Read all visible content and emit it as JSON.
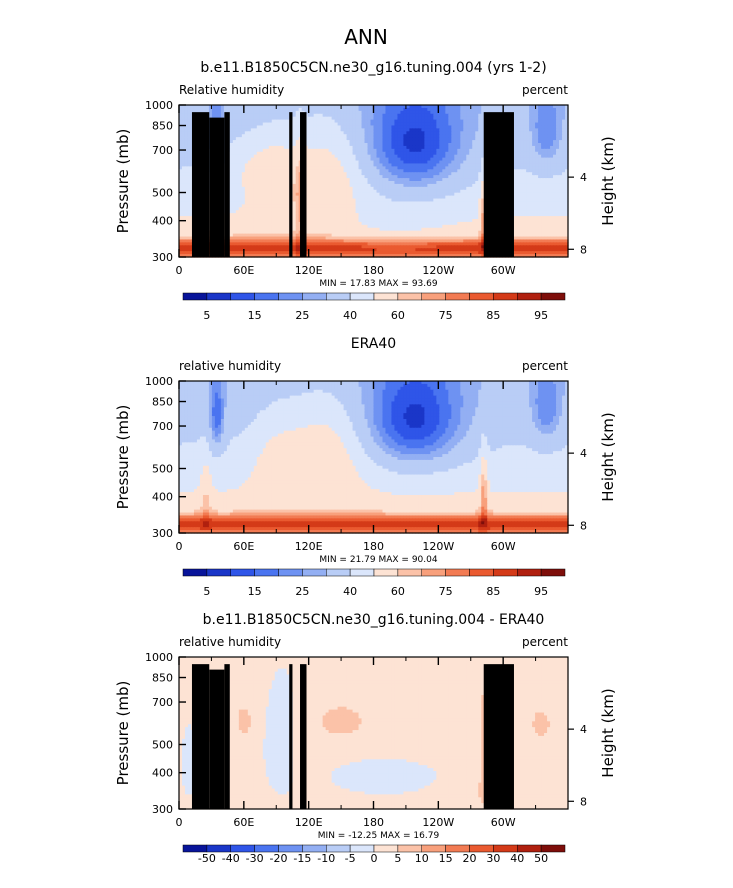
{
  "figure": {
    "title": "ANN"
  },
  "chart_data": [
    {
      "type": "heatmap",
      "title": "b.e11.B1850C5CN.ne30_g16.tuning.004 (yrs 1-2)",
      "left_label": "Relative humidity",
      "right_label": "percent",
      "ylabel": "Pressure (mb)",
      "ylabel_right": "Height (km)",
      "x_ticks": [
        "0",
        "60E",
        "120E",
        "180",
        "120W",
        "60W"
      ],
      "x_tick_lon": [
        0,
        60,
        120,
        180,
        240,
        300
      ],
      "xlim": [
        0,
        360
      ],
      "y_ticks": [
        "300",
        "400",
        "500",
        "700",
        "850",
        "1000"
      ],
      "y_tick_p": [
        300,
        400,
        500,
        700,
        850,
        1000
      ],
      "ylim": [
        1000,
        300
      ],
      "y_scale": "log",
      "height_ticks": [
        "8",
        "4"
      ],
      "height_km": [
        8,
        4
      ],
      "stats": "MIN =   17.83   MAX =   93.69",
      "min": 17.83,
      "max": 93.69,
      "colorbar_labels": [
        "5",
        "15",
        "25",
        "40",
        "60",
        "75",
        "85",
        "95"
      ],
      "colorbar_levels": [
        5,
        10,
        15,
        20,
        25,
        30,
        40,
        50,
        60,
        65,
        70,
        75,
        80,
        85,
        90,
        95
      ]
    },
    {
      "type": "heatmap",
      "title": "ERA40",
      "left_label": "relative humidity",
      "right_label": "percent",
      "ylabel": "Pressure (mb)",
      "ylabel_right": "Height (km)",
      "x_ticks": [
        "0",
        "60E",
        "120E",
        "180",
        "120W",
        "60W"
      ],
      "x_tick_lon": [
        0,
        60,
        120,
        180,
        240,
        300
      ],
      "xlim": [
        0,
        360
      ],
      "y_ticks": [
        "300",
        "400",
        "500",
        "700",
        "850",
        "1000"
      ],
      "y_tick_p": [
        300,
        400,
        500,
        700,
        850,
        1000
      ],
      "ylim": [
        1000,
        300
      ],
      "y_scale": "log",
      "height_ticks": [
        "8",
        "4"
      ],
      "height_km": [
        8,
        4
      ],
      "stats": "MIN =   21.79   MAX =   90.04",
      "min": 21.79,
      "max": 90.04,
      "colorbar_labels": [
        "5",
        "15",
        "25",
        "40",
        "60",
        "75",
        "85",
        "95"
      ],
      "colorbar_levels": [
        5,
        10,
        15,
        20,
        25,
        30,
        40,
        50,
        60,
        65,
        70,
        75,
        80,
        85,
        90,
        95
      ]
    },
    {
      "type": "heatmap",
      "title": "b.e11.B1850C5CN.ne30_g16.tuning.004 - ERA40",
      "left_label": "relative humidity",
      "right_label": "percent",
      "ylabel": "Pressure (mb)",
      "ylabel_right": "Height (km)",
      "x_ticks": [
        "0",
        "60E",
        "120E",
        "180",
        "120W",
        "60W"
      ],
      "x_tick_lon": [
        0,
        60,
        120,
        180,
        240,
        300
      ],
      "xlim": [
        0,
        360
      ],
      "y_ticks": [
        "300",
        "400",
        "500",
        "700",
        "850",
        "1000"
      ],
      "y_tick_p": [
        300,
        400,
        500,
        700,
        850,
        1000
      ],
      "ylim": [
        1000,
        300
      ],
      "y_scale": "log",
      "height_ticks": [
        "8",
        "4"
      ],
      "height_km": [
        8,
        4
      ],
      "stats": "MIN = -12.25   MAX =   16.79",
      "min": -12.25,
      "max": 16.79,
      "colorbar_labels": [
        "-50",
        "-40",
        "-30",
        "-20",
        "-15",
        "-10",
        "-5",
        "0",
        "5",
        "10",
        "15",
        "20",
        "30",
        "40",
        "50"
      ],
      "colorbar_levels": [
        -50,
        -40,
        -30,
        -20,
        -15,
        -10,
        -5,
        0,
        5,
        10,
        15,
        20,
        30,
        40,
        50
      ]
    }
  ],
  "colors": {
    "scale": [
      "#08149a",
      "#1a36c8",
      "#2f55e8",
      "#4a74f0",
      "#6e92f2",
      "#93aff3",
      "#b9cdf6",
      "#dbe6fb",
      "#fde3d4",
      "#fbc2a8",
      "#f8a07c",
      "#f27b53",
      "#ea5a30",
      "#d43a18",
      "#b0200f",
      "#7e0e0a"
    ],
    "diff_scale": [
      "#08149a",
      "#1a36c8",
      "#2f55e8",
      "#4a74f0",
      "#6e92f2",
      "#93aff3",
      "#b9cdf6",
      "#dbe6fb",
      "#fde3d4",
      "#fbc2a8",
      "#f8a07c",
      "#f27b53",
      "#ea5a30",
      "#d43a18",
      "#b0200f",
      "#7e0e0a"
    ],
    "terrain": "#000000"
  }
}
